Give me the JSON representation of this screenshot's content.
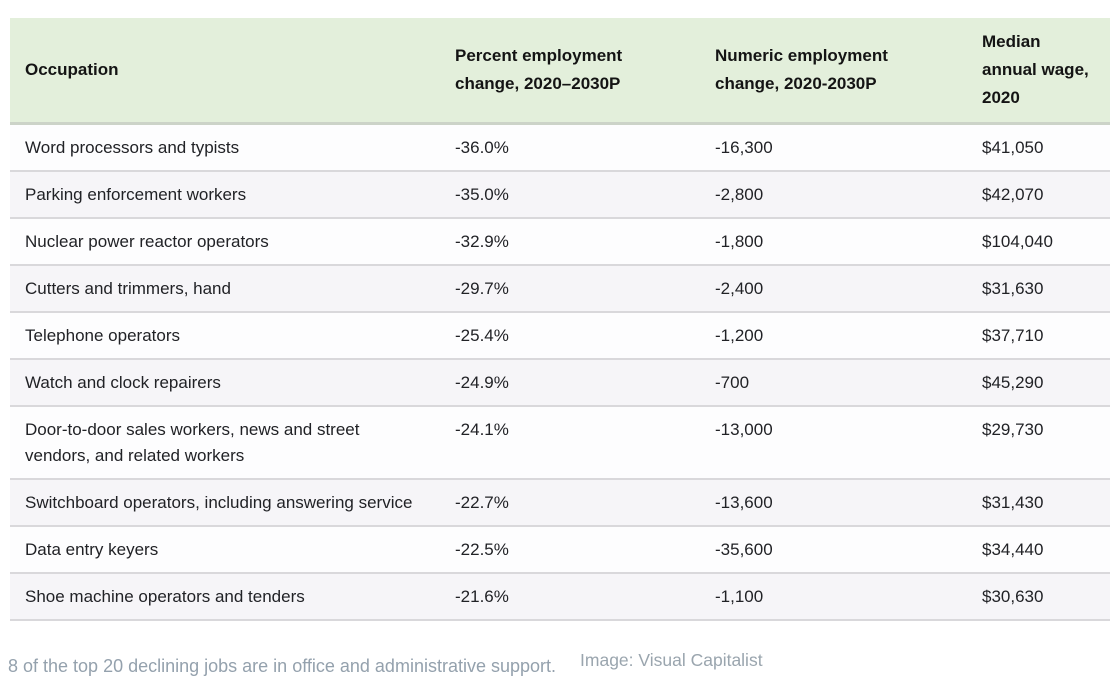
{
  "chart_data": {
    "type": "table",
    "title": "",
    "columns": [
      "Occupation",
      "Percent employment change, 2020–2030P",
      "Numeric employment change, 2020-2030P",
      "Median annual wage, 2020"
    ],
    "rows": [
      {
        "occupation": "Word processors and typists",
        "percent_change": "-36.0%",
        "numeric_change": "-16,300",
        "median_wage": "$41,050"
      },
      {
        "occupation": "Parking enforcement workers",
        "percent_change": "-35.0%",
        "numeric_change": "-2,800",
        "median_wage": "$42,070"
      },
      {
        "occupation": "Nuclear power reactor operators",
        "percent_change": "-32.9%",
        "numeric_change": "-1,800",
        "median_wage": "$104,040"
      },
      {
        "occupation": "Cutters and trimmers, hand",
        "percent_change": "-29.7%",
        "numeric_change": "-2,400",
        "median_wage": "$31,630"
      },
      {
        "occupation": "Telephone operators",
        "percent_change": "-25.4%",
        "numeric_change": "-1,200",
        "median_wage": "$37,710"
      },
      {
        "occupation": "Watch and clock repairers",
        "percent_change": "-24.9%",
        "numeric_change": "-700",
        "median_wage": "$45,290"
      },
      {
        "occupation": "Door-to-door sales workers, news and street vendors, and related workers",
        "percent_change": "-24.1%",
        "numeric_change": "-13,000",
        "median_wage": "$29,730"
      },
      {
        "occupation": "Switchboard operators, including answering service",
        "percent_change": "-22.7%",
        "numeric_change": "-13,600",
        "median_wage": "$31,430"
      },
      {
        "occupation": "Data entry keyers",
        "percent_change": "-22.5%",
        "numeric_change": "-35,600",
        "median_wage": "$34,440"
      },
      {
        "occupation": "Shoe machine operators and tenders",
        "percent_change": "-21.6%",
        "numeric_change": "-1,100",
        "median_wage": "$30,630"
      }
    ]
  },
  "footer": {
    "caption": "8 of the top 20 declining jobs are in office and administrative support.",
    "credit": "Image: Visual Capitalist"
  },
  "colors": {
    "header_bg": "#e3efdb",
    "even_row_bg": "#f6f5f8",
    "separator": "#d9d8db",
    "caption_text": "#94a1ad"
  }
}
